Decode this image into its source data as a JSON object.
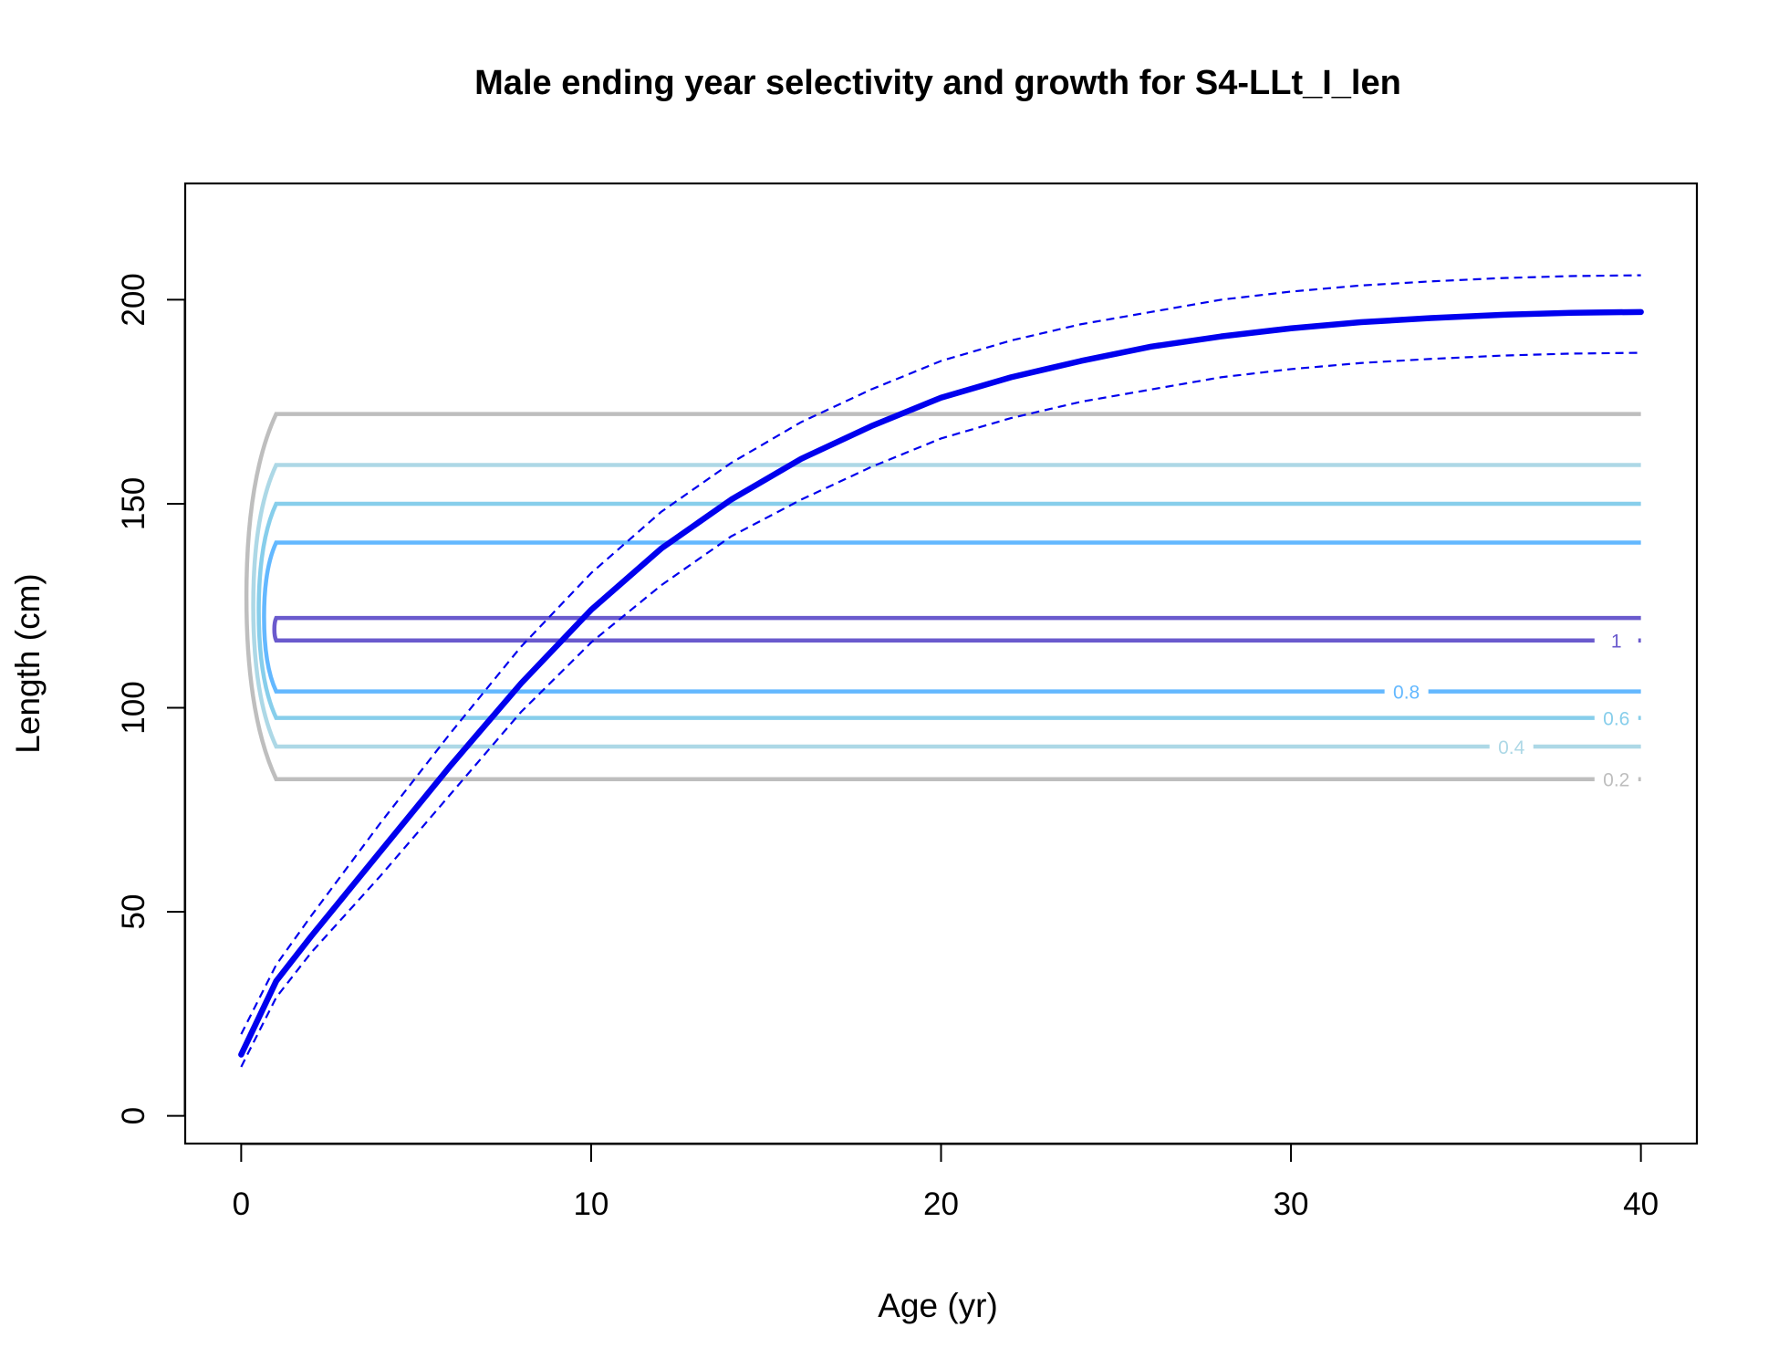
{
  "chart_data": {
    "type": "line",
    "title": "Male ending year selectivity and growth for S4-LLt_I_len",
    "xlabel": "Age (yr)",
    "ylabel": "Length (cm)",
    "xlim": [
      -1.6,
      41.6
    ],
    "ylim": [
      -6.8,
      228.5
    ],
    "xticks": [
      0,
      10,
      20,
      30,
      40
    ],
    "yticks": [
      0,
      50,
      100,
      150,
      200
    ],
    "grid": false,
    "colors": {
      "growth": "#0000ee",
      "c02": "#bebebe",
      "c04": "#add8e6",
      "c06": "#87ceeb",
      "c08": "#63b8ff",
      "c10": "#6a5acd"
    },
    "growth": {
      "x": [
        0,
        1,
        2,
        4,
        6,
        8,
        10,
        12,
        14,
        16,
        18,
        20,
        22,
        24,
        26,
        28,
        30,
        32,
        34,
        36,
        38,
        40
      ],
      "mean": [
        15,
        33,
        44,
        65,
        86,
        106,
        124,
        139,
        151,
        161,
        169,
        176,
        181,
        185,
        188.5,
        191,
        193,
        194.5,
        195.5,
        196.3,
        196.8,
        197
      ],
      "upper": [
        20,
        37,
        49,
        72,
        94,
        115,
        133,
        148,
        160,
        170,
        178,
        185,
        190,
        194,
        197,
        200,
        202,
        203.5,
        204.5,
        205.3,
        205.8,
        206
      ],
      "lower": [
        12,
        29,
        40,
        59,
        79,
        99,
        116,
        130,
        142,
        151,
        159,
        166,
        171,
        175,
        178,
        181,
        183,
        184.5,
        185.5,
        186.3,
        186.8,
        187
      ]
    },
    "selectivity_contours": [
      {
        "level": "0.2",
        "low": 82.5,
        "high": 172.0,
        "label_x": 39.3
      },
      {
        "level": "0.4",
        "low": 90.5,
        "high": 159.5,
        "label_x": 36.3
      },
      {
        "level": "0.6",
        "low": 97.5,
        "high": 150.0,
        "label_x": 39.3
      },
      {
        "level": "0.8",
        "low": 104.0,
        "high": 140.5,
        "label_x": 33.3
      },
      {
        "level": "1",
        "low": 116.5,
        "high": 122.0,
        "label_x": 39.3
      }
    ]
  }
}
